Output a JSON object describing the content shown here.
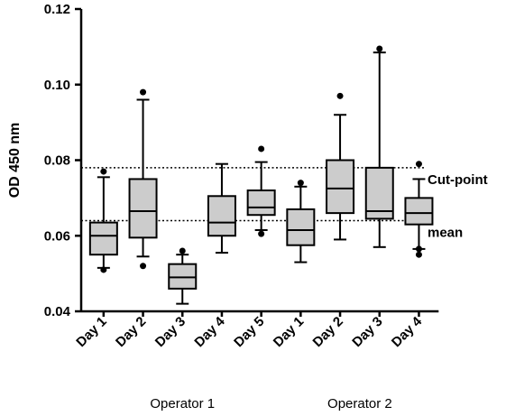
{
  "chart_data": {
    "type": "box",
    "xlabel": "",
    "ylabel": "OD 450 nm",
    "ylim": [
      0.04,
      0.12
    ],
    "yticks": [
      0.04,
      0.06,
      0.08,
      0.1,
      0.12
    ],
    "ytick_labels": [
      "0.04",
      "0.06",
      "0.08",
      "0.10",
      "0.12"
    ],
    "grid": false,
    "box_fill": "#cccccc",
    "reference_lines": [
      {
        "label": "Cut-point",
        "value": 0.078
      },
      {
        "label": "mean",
        "value": 0.064
      }
    ],
    "groups": [
      {
        "label": "Operator 1",
        "start": 0,
        "end": 4
      },
      {
        "label": "Operator 2",
        "start": 5,
        "end": 8
      }
    ],
    "boxes": [
      {
        "label": "Day 1",
        "whisker_low": 0.0515,
        "q1": 0.055,
        "median": 0.06,
        "q3": 0.0635,
        "whisker_high": 0.0755,
        "outliers": [
          0.051,
          0.077
        ]
      },
      {
        "label": "Day 2",
        "whisker_low": 0.0545,
        "q1": 0.0595,
        "median": 0.0665,
        "q3": 0.075,
        "whisker_high": 0.096,
        "outliers": [
          0.052,
          0.098
        ]
      },
      {
        "label": "Day 3",
        "whisker_low": 0.042,
        "q1": 0.046,
        "median": 0.049,
        "q3": 0.0525,
        "whisker_high": 0.055,
        "outliers": [
          0.056
        ]
      },
      {
        "label": "Day 4",
        "whisker_low": 0.0555,
        "q1": 0.06,
        "median": 0.0635,
        "q3": 0.0705,
        "whisker_high": 0.079,
        "outliers": []
      },
      {
        "label": "Day 5",
        "whisker_low": 0.0615,
        "q1": 0.0655,
        "median": 0.0675,
        "q3": 0.072,
        "whisker_high": 0.0795,
        "outliers": [
          0.0605,
          0.083
        ]
      },
      {
        "label": "Day 1",
        "whisker_low": 0.053,
        "q1": 0.0575,
        "median": 0.0615,
        "q3": 0.067,
        "whisker_high": 0.073,
        "outliers": [
          0.074
        ]
      },
      {
        "label": "Day 2",
        "whisker_low": 0.059,
        "q1": 0.066,
        "median": 0.0725,
        "q3": 0.08,
        "whisker_high": 0.092,
        "outliers": [
          0.097
        ]
      },
      {
        "label": "Day 3",
        "whisker_low": 0.057,
        "q1": 0.0645,
        "median": 0.0665,
        "q3": 0.078,
        "whisker_high": 0.1085,
        "outliers": [
          0.1095
        ]
      },
      {
        "label": "Day 4",
        "whisker_low": 0.0565,
        "q1": 0.063,
        "median": 0.066,
        "q3": 0.07,
        "whisker_high": 0.075,
        "outliers": [
          0.055,
          0.079,
          0.0565
        ]
      }
    ]
  }
}
